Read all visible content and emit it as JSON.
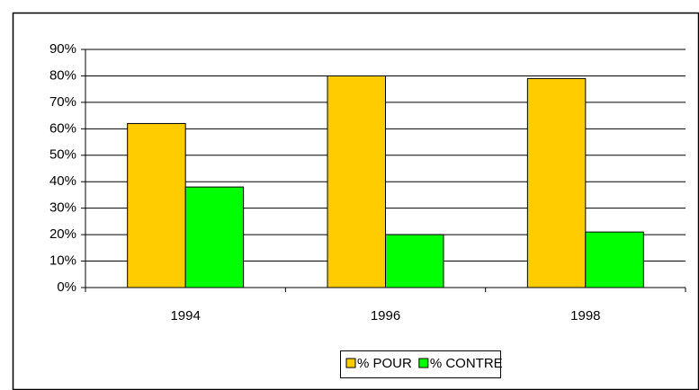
{
  "chart_data": {
    "type": "bar",
    "categories": [
      "1994",
      "1996",
      "1998"
    ],
    "series": [
      {
        "name": "% POUR",
        "color": "#ffcc00",
        "values": [
          62,
          80,
          79
        ]
      },
      {
        "name": "% CONTRE",
        "color": "#00ff00",
        "values": [
          38,
          20,
          21
        ]
      }
    ],
    "ylim": [
      0,
      90
    ],
    "yticks": [
      {
        "value": 0,
        "label": "0%"
      },
      {
        "value": 10,
        "label": "10%"
      },
      {
        "value": 20,
        "label": "20%"
      },
      {
        "value": 30,
        "label": "30%"
      },
      {
        "value": 40,
        "label": "40%"
      },
      {
        "value": 50,
        "label": "50%"
      },
      {
        "value": 60,
        "label": "60%"
      },
      {
        "value": 70,
        "label": "70%"
      },
      {
        "value": 80,
        "label": "80%"
      },
      {
        "value": 90,
        "label": "90%"
      }
    ],
    "grid": true
  }
}
